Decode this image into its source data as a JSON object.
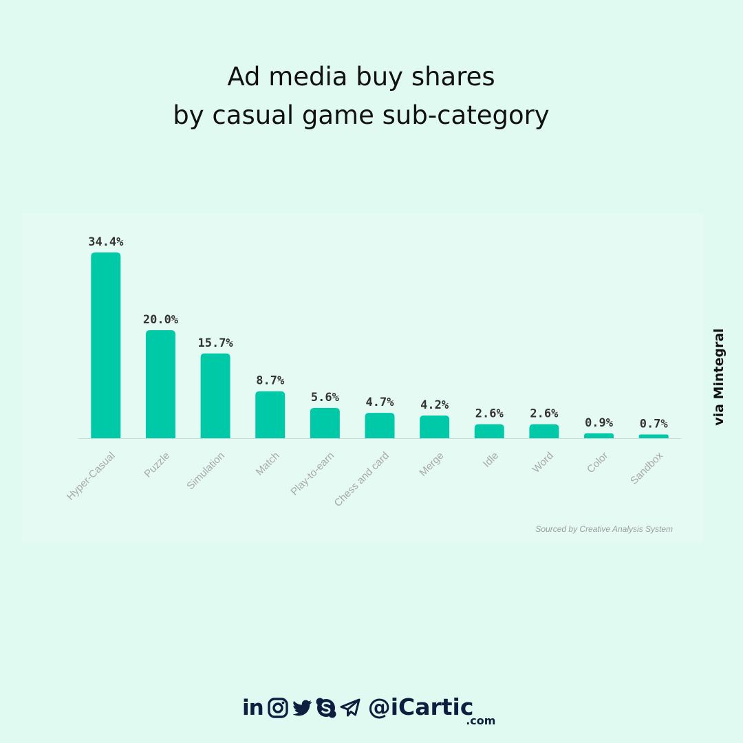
{
  "header": {
    "title_line1": "Ad media buy shares",
    "title_line2": "by casual game sub-category"
  },
  "chart_data": {
    "type": "bar",
    "categories": [
      "Hyper-Casual",
      "Puzzle",
      "Simulation",
      "Match",
      "Play-to-earn",
      "Chess and card",
      "Merge",
      "Idle",
      "Word",
      "Color",
      "Sandbox"
    ],
    "values": [
      34.4,
      20.0,
      15.7,
      8.7,
      5.6,
      4.7,
      4.2,
      2.6,
      2.6,
      0.9,
      0.7
    ],
    "data_labels": [
      "34.4%",
      "20.0%",
      "15.7%",
      "8.7%",
      "5.6%",
      "4.7%",
      "4.2%",
      "2.6%",
      "2.6%",
      "0.9%",
      "0.7%"
    ],
    "unit": "%",
    "ylim": [
      0,
      34.4
    ],
    "grid": false,
    "bar_color": "#00c9a7",
    "source": "Sourced by Creative Analysis System"
  },
  "side_note": "via Mintegral",
  "footer": {
    "social_icons": [
      "linkedin-icon",
      "instagram-icon",
      "twitter-icon",
      "skype-icon",
      "telegram-icon"
    ],
    "linkedin_text": "in",
    "handle": "@iCartic",
    "handle_suffix": ".com",
    "brand_color": "#0e1e3f"
  },
  "colors": {
    "background": "#e0f9f1",
    "bar": "#00c9a7",
    "value_label": "#333333",
    "category_label": "#a8a8a8",
    "baseline": "#cfd8d4"
  }
}
